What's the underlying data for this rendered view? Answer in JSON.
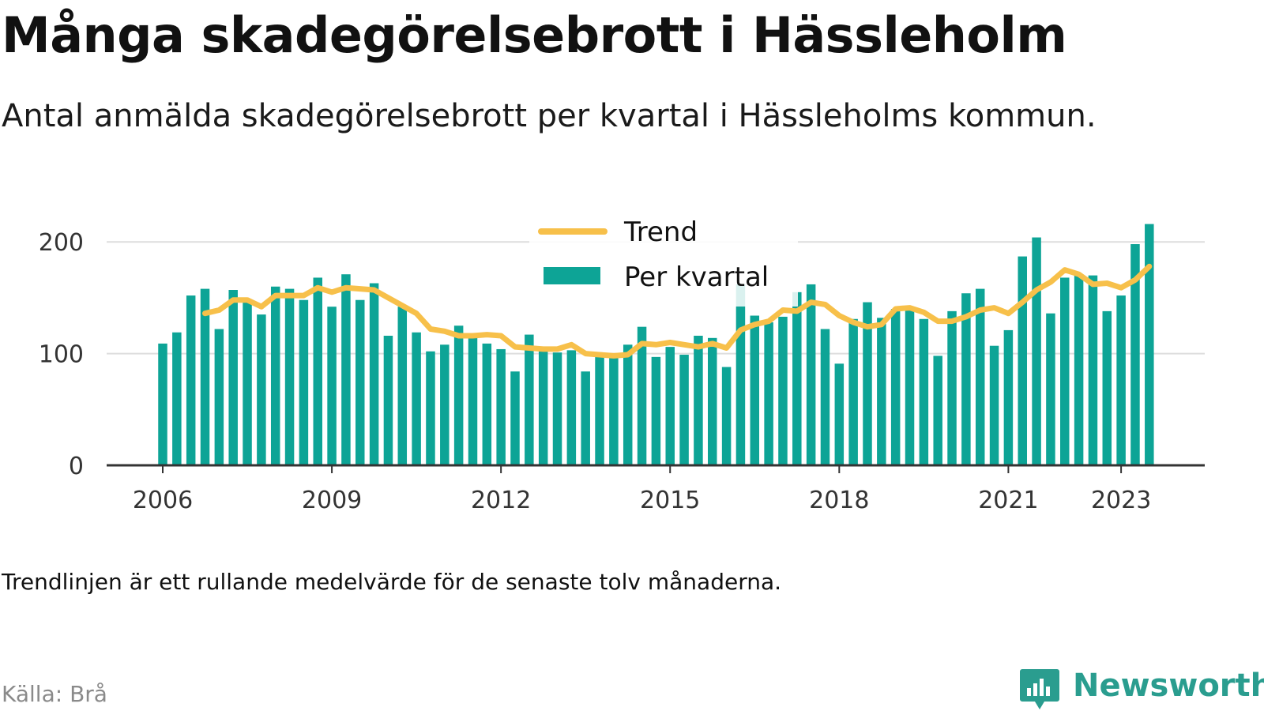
{
  "header": {
    "title": "Många skadegörelsebrott i Hässleholm",
    "subtitle": "Antal anmälda skadegörelsebrott per kvartal i Hässleholms kommun."
  },
  "footer": {
    "note": "Trendlinjen är ett rullande medelvärde för de senaste tolv månaderna.",
    "source": "Källa: Brå",
    "brand": "Newsworthy"
  },
  "colors": {
    "bar": "#0da496",
    "trend": "#f7c04a",
    "grid": "#dddddd",
    "axis": "#333333",
    "brand": "#2a9d8f"
  },
  "icons": {
    "brand_logo": "bar-chart-speech-bubble-icon"
  },
  "chart_data": {
    "type": "bar",
    "legend": {
      "placement": "top-center",
      "trend_label": "Trend",
      "bars_label": "Per kvartal"
    },
    "ylim": [
      0,
      215
    ],
    "yticks": [
      0,
      100,
      200
    ],
    "xticks": [
      {
        "label": "2006",
        "index": 0
      },
      {
        "label": "2009",
        "index": 12
      },
      {
        "label": "2012",
        "index": 24
      },
      {
        "label": "2015",
        "index": 36
      },
      {
        "label": "2018",
        "index": 48
      },
      {
        "label": "2021",
        "index": 60
      },
      {
        "label": "2023",
        "index": 68
      }
    ],
    "series": [
      {
        "name": "Per kvartal",
        "values": [
          109,
          119,
          152,
          158,
          122,
          157,
          146,
          135,
          160,
          158,
          148,
          168,
          142,
          171,
          148,
          163,
          116,
          142,
          119,
          102,
          108,
          125,
          118,
          109,
          104,
          84,
          117,
          104,
          101,
          103,
          84,
          101,
          98,
          108,
          124,
          97,
          106,
          99,
          116,
          114,
          88,
          162,
          134,
          128,
          133,
          155,
          162,
          122,
          91,
          131,
          146,
          132,
          140,
          139,
          131,
          98,
          138,
          154,
          158,
          107,
          121,
          187,
          204,
          136,
          168,
          170,
          170,
          138,
          152,
          198,
          216
        ]
      },
      {
        "name": "Trend",
        "start_index": 3,
        "values": [
          136,
          139,
          148,
          148,
          142,
          152,
          152,
          152,
          159,
          155,
          159,
          158,
          157,
          150,
          143,
          136,
          122,
          120,
          116,
          116,
          117,
          116,
          106,
          105,
          104,
          104,
          108,
          100,
          99,
          98,
          99,
          109,
          108,
          110,
          108,
          106,
          109,
          105,
          121,
          126,
          129,
          139,
          138,
          146,
          144,
          134,
          128,
          124,
          126,
          140,
          141,
          137,
          129,
          129,
          133,
          139,
          141,
          136,
          146,
          157,
          164,
          175,
          171,
          162,
          163,
          159,
          166,
          178
        ]
      }
    ]
  }
}
